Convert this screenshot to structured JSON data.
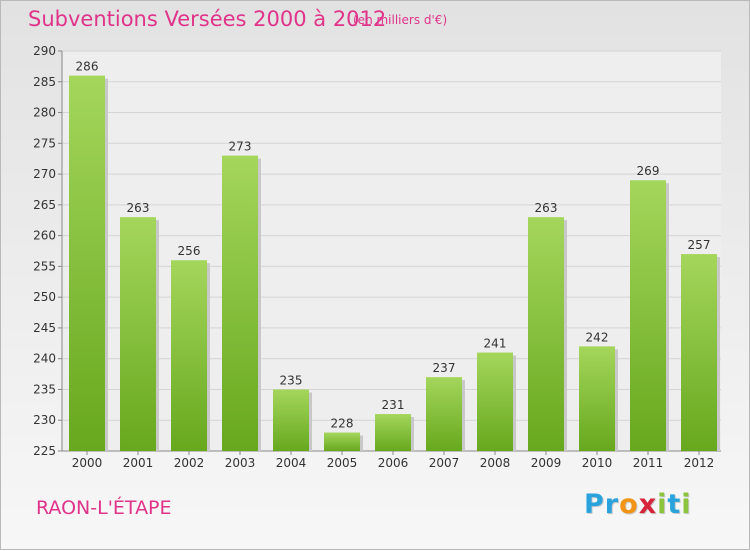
{
  "header": {
    "title": "Subventions Versées 2000 à 2012",
    "subtitle": "(en milliers d'€)"
  },
  "footer": {
    "city": "RAON-L'ÉTAPE",
    "logo_letters": [
      "P",
      "r",
      "o",
      "x",
      "i",
      "t",
      "i"
    ],
    "logo_colors": [
      "#2aa3dd",
      "#2aa3dd",
      "#f29416",
      "#d6243a",
      "#8cc43e",
      "#2aa3dd",
      "#8cc43e"
    ]
  },
  "colors": {
    "title": "#e0338a",
    "bar_light": "#a4d65c",
    "bar_dark": "#67a81d",
    "grid": "#d4d4d4"
  },
  "chart_data": {
    "type": "bar",
    "categories": [
      "2000",
      "2001",
      "2002",
      "2003",
      "2004",
      "2005",
      "2006",
      "2007",
      "2008",
      "2009",
      "2010",
      "2011",
      "2012"
    ],
    "values": [
      286,
      263,
      256,
      273,
      235,
      228,
      231,
      237,
      241,
      263,
      242,
      269,
      257
    ],
    "data_labels": [
      "286",
      "263",
      "256",
      "273",
      "235",
      "228",
      "231",
      "237",
      "241",
      "263",
      "242",
      "269",
      "257"
    ],
    "yticks": [
      225,
      230,
      235,
      240,
      245,
      250,
      255,
      260,
      265,
      270,
      275,
      280,
      285,
      290
    ],
    "ylim": [
      225,
      290
    ],
    "grid": true,
    "title": "Subventions Versées 2000 à 2012",
    "xlabel": "",
    "ylabel": ""
  }
}
